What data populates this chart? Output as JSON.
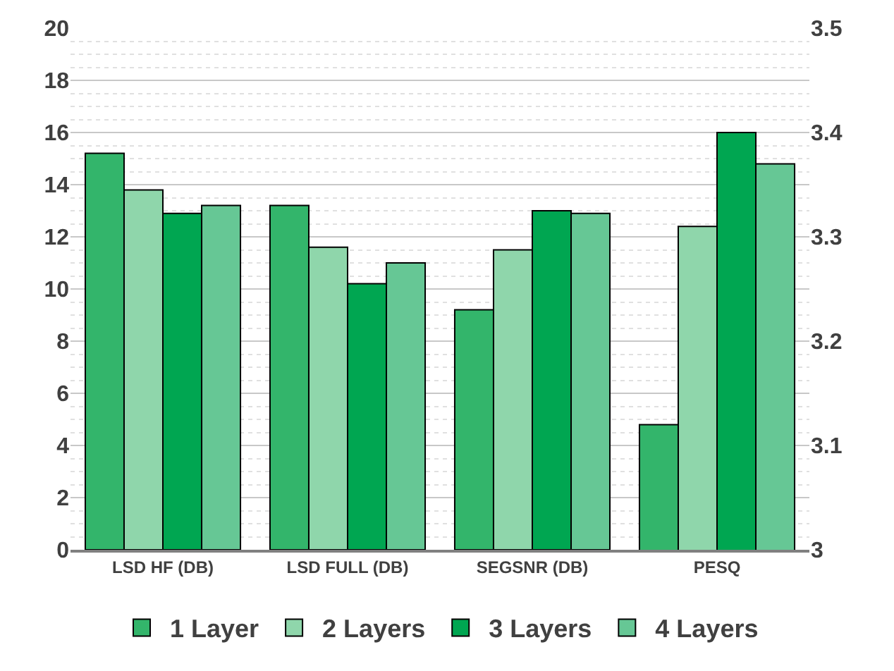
{
  "chart_data": {
    "type": "bar",
    "categories": [
      "LSD HF (DB)",
      "LSD FULL (DB)",
      "SEGSNR (DB)",
      "PESQ"
    ],
    "series": [
      {
        "name": "1 Layer",
        "color": "#33b56b",
        "values": [
          15.2,
          13.2,
          9.2,
          null
        ]
      },
      {
        "name": "2 Layers",
        "color": "#8fd6ab",
        "values": [
          13.8,
          11.6,
          11.5,
          null
        ]
      },
      {
        "name": "3 Layers",
        "color": "#00a651",
        "values": [
          12.9,
          10.2,
          13.0,
          null
        ]
      },
      {
        "name": "4 Layers",
        "color": "#66c795",
        "values": [
          13.2,
          11.0,
          12.9,
          null
        ]
      },
      {
        "color": "#33b56b",
        "axis": "y2",
        "values": [
          null,
          null,
          null,
          3.12
        ]
      },
      {
        "color": "#8fd6ab",
        "axis": "y2",
        "values": [
          null,
          null,
          null,
          3.31
        ]
      },
      {
        "color": "#00a651",
        "axis": "y2",
        "values": [
          null,
          null,
          null,
          3.4
        ]
      },
      {
        "color": "#66c795",
        "axis": "y2",
        "values": [
          null,
          null,
          null,
          3.37
        ]
      }
    ],
    "ylim": [
      0,
      20
    ],
    "yticks": [
      0,
      2,
      4,
      6,
      8,
      10,
      12,
      14,
      16,
      18,
      20
    ],
    "y2lim": [
      3,
      3.5
    ],
    "y2ticks": [
      3,
      3.1,
      3.2,
      3.3,
      3.4,
      3.5
    ],
    "grid": "y",
    "legend": "bottom"
  }
}
